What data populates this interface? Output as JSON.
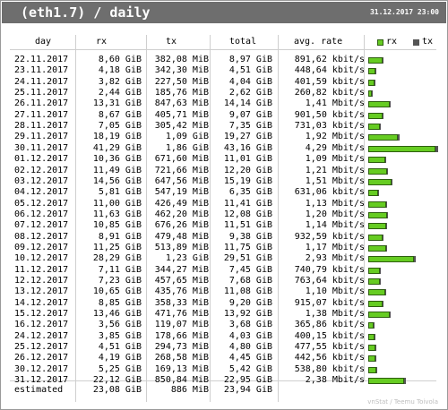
{
  "window": {
    "title": " (eth1.7) / daily",
    "datetime": "31.12.2017 23:00"
  },
  "columns": {
    "day": "day",
    "rx": "rx",
    "tx": "tx",
    "total": "total",
    "avg_rate": "avg. rate"
  },
  "legend": {
    "rx": "rx",
    "tx": "tx",
    "rx_color": "#66cc22",
    "tx_color": "#555555"
  },
  "rows": [
    {
      "day": "22.11.2017",
      "rx": "8,60 GiB",
      "tx": "382,08 MiB",
      "total": "8,97 GiB",
      "avg": "891,62 kbit/s",
      "rx_gib": 8.6,
      "tx_gib": 0.373
    },
    {
      "day": "23.11.2017",
      "rx": "4,18 GiB",
      "tx": "342,30 MiB",
      "total": "4,51 GiB",
      "avg": "448,64 kbit/s",
      "rx_gib": 4.18,
      "tx_gib": 0.334
    },
    {
      "day": "24.11.2017",
      "rx": "3,82 GiB",
      "tx": "227,50 MiB",
      "total": "4,04 GiB",
      "avg": "401,59 kbit/s",
      "rx_gib": 3.82,
      "tx_gib": 0.222
    },
    {
      "day": "25.11.2017",
      "rx": "2,44 GiB",
      "tx": "185,76 MiB",
      "total": "2,62 GiB",
      "avg": "260,82 kbit/s",
      "rx_gib": 2.44,
      "tx_gib": 0.181
    },
    {
      "day": "26.11.2017",
      "rx": "13,31 GiB",
      "tx": "847,63 MiB",
      "total": "14,14 GiB",
      "avg": "1,41 Mbit/s",
      "rx_gib": 13.31,
      "tx_gib": 0.828
    },
    {
      "day": "27.11.2017",
      "rx": "8,67 GiB",
      "tx": "405,71 MiB",
      "total": "9,07 GiB",
      "avg": "901,50 kbit/s",
      "rx_gib": 8.67,
      "tx_gib": 0.396
    },
    {
      "day": "28.11.2017",
      "rx": "7,05 GiB",
      "tx": "305,42 MiB",
      "total": "7,35 GiB",
      "avg": "731,03 kbit/s",
      "rx_gib": 7.05,
      "tx_gib": 0.298
    },
    {
      "day": "29.11.2017",
      "rx": "18,19 GiB",
      "tx": "1,09 GiB",
      "total": "19,27 GiB",
      "avg": "1,92 Mbit/s",
      "rx_gib": 18.19,
      "tx_gib": 1.09
    },
    {
      "day": "30.11.2017",
      "rx": "41,29 GiB",
      "tx": "1,86 GiB",
      "total": "43,16 GiB",
      "avg": "4,29 Mbit/s",
      "rx_gib": 41.29,
      "tx_gib": 1.86
    },
    {
      "day": "01.12.2017",
      "rx": "10,36 GiB",
      "tx": "671,60 MiB",
      "total": "11,01 GiB",
      "avg": "1,09 Mbit/s",
      "rx_gib": 10.36,
      "tx_gib": 0.656
    },
    {
      "day": "02.12.2017",
      "rx": "11,49 GiB",
      "tx": "721,66 MiB",
      "total": "12,20 GiB",
      "avg": "1,21 Mbit/s",
      "rx_gib": 11.49,
      "tx_gib": 0.705
    },
    {
      "day": "03.12.2017",
      "rx": "14,56 GiB",
      "tx": "647,56 MiB",
      "total": "15,19 GiB",
      "avg": "1,51 Mbit/s",
      "rx_gib": 14.56,
      "tx_gib": 0.632
    },
    {
      "day": "04.12.2017",
      "rx": "5,81 GiB",
      "tx": "547,19 MiB",
      "total": "6,35 GiB",
      "avg": "631,06 kbit/s",
      "rx_gib": 5.81,
      "tx_gib": 0.534
    },
    {
      "day": "05.12.2017",
      "rx": "11,00 GiB",
      "tx": "426,49 MiB",
      "total": "11,41 GiB",
      "avg": "1,13 Mbit/s",
      "rx_gib": 11.0,
      "tx_gib": 0.416
    },
    {
      "day": "06.12.2017",
      "rx": "11,63 GiB",
      "tx": "462,20 MiB",
      "total": "12,08 GiB",
      "avg": "1,20 Mbit/s",
      "rx_gib": 11.63,
      "tx_gib": 0.451
    },
    {
      "day": "07.12.2017",
      "rx": "10,85 GiB",
      "tx": "676,26 MiB",
      "total": "11,51 GiB",
      "avg": "1,14 Mbit/s",
      "rx_gib": 10.85,
      "tx_gib": 0.66
    },
    {
      "day": "08.12.2017",
      "rx": "8,91 GiB",
      "tx": "479,48 MiB",
      "total": "9,38 GiB",
      "avg": "932,59 kbit/s",
      "rx_gib": 8.91,
      "tx_gib": 0.468
    },
    {
      "day": "09.12.2017",
      "rx": "11,25 GiB",
      "tx": "513,89 MiB",
      "total": "11,75 GiB",
      "avg": "1,17 Mbit/s",
      "rx_gib": 11.25,
      "tx_gib": 0.502
    },
    {
      "day": "10.12.2017",
      "rx": "28,29 GiB",
      "tx": "1,23 GiB",
      "total": "29,51 GiB",
      "avg": "2,93 Mbit/s",
      "rx_gib": 28.29,
      "tx_gib": 1.23
    },
    {
      "day": "11.12.2017",
      "rx": "7,11 GiB",
      "tx": "344,27 MiB",
      "total": "7,45 GiB",
      "avg": "740,79 kbit/s",
      "rx_gib": 7.11,
      "tx_gib": 0.336
    },
    {
      "day": "12.12.2017",
      "rx": "7,23 GiB",
      "tx": "457,65 MiB",
      "total": "7,68 GiB",
      "avg": "763,64 kbit/s",
      "rx_gib": 7.23,
      "tx_gib": 0.447
    },
    {
      "day": "13.12.2017",
      "rx": "10,65 GiB",
      "tx": "435,76 MiB",
      "total": "11,08 GiB",
      "avg": "1,10 Mbit/s",
      "rx_gib": 10.65,
      "tx_gib": 0.426
    },
    {
      "day": "14.12.2017",
      "rx": "8,85 GiB",
      "tx": "358,33 MiB",
      "total": "9,20 GiB",
      "avg": "915,07 kbit/s",
      "rx_gib": 8.85,
      "tx_gib": 0.35
    },
    {
      "day": "15.12.2017",
      "rx": "13,46 GiB",
      "tx": "471,76 MiB",
      "total": "13,92 GiB",
      "avg": "1,38 Mbit/s",
      "rx_gib": 13.46,
      "tx_gib": 0.461
    },
    {
      "day": "16.12.2017",
      "rx": "3,56 GiB",
      "tx": "119,07 MiB",
      "total": "3,68 GiB",
      "avg": "365,86 kbit/s",
      "rx_gib": 3.56,
      "tx_gib": 0.116
    },
    {
      "day": "24.12.2017",
      "rx": "3,85 GiB",
      "tx": "178,66 MiB",
      "total": "4,03 GiB",
      "avg": "400,15 kbit/s",
      "rx_gib": 3.85,
      "tx_gib": 0.174
    },
    {
      "day": "25.12.2017",
      "rx": "4,51 GiB",
      "tx": "294,73 MiB",
      "total": "4,80 GiB",
      "avg": "477,55 kbit/s",
      "rx_gib": 4.51,
      "tx_gib": 0.288
    },
    {
      "day": "26.12.2017",
      "rx": "4,19 GiB",
      "tx": "268,58 MiB",
      "total": "4,45 GiB",
      "avg": "442,56 kbit/s",
      "rx_gib": 4.19,
      "tx_gib": 0.262
    },
    {
      "day": "30.12.2017",
      "rx": "5,25 GiB",
      "tx": "169,13 MiB",
      "total": "5,42 GiB",
      "avg": "538,80 kbit/s",
      "rx_gib": 5.25,
      "tx_gib": 0.165
    },
    {
      "day": "31.12.2017",
      "rx": "22,12 GiB",
      "tx": "850,84 MiB",
      "total": "22,95 GiB",
      "avg": "2,38 Mbit/s",
      "rx_gib": 22.12,
      "tx_gib": 0.831
    }
  ],
  "estimated": {
    "label": "estimated",
    "rx": "23,08 GiB",
    "tx": "886 MiB",
    "total": "23,94 GiB"
  },
  "credit": "vnStat / Teemu Toivola"
}
